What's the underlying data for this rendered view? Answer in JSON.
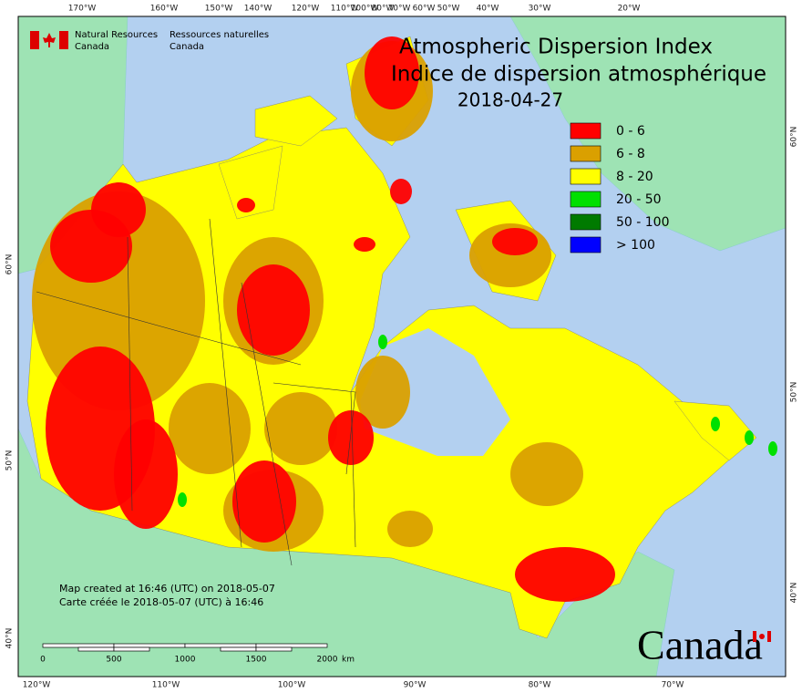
{
  "header": {
    "dept_en": "Natural Resources",
    "dept_en_2": "Canada",
    "dept_fr": "Ressources naturelles",
    "dept_fr_2": "Canada"
  },
  "title": {
    "line1": "Atmospheric Dispersion Index",
    "line2": "Indice de dispersion atmosphérique",
    "date": "2018-04-27"
  },
  "legend": [
    {
      "label": "0 - 6",
      "color": "#ff0000"
    },
    {
      "label": "6 - 8",
      "color": "#daa000"
    },
    {
      "label": "8 - 20",
      "color": "#ffff00"
    },
    {
      "label": "20 - 50",
      "color": "#00e000"
    },
    {
      "label": "50 - 100",
      "color": "#007a00"
    },
    {
      "label": "> 100",
      "color": "#0000ff"
    }
  ],
  "graticule": {
    "top": [
      "170°W",
      "160°W",
      "150°W",
      "140°W",
      "120°W",
      "110°W",
      "100°W",
      "80°W",
      "70°W",
      "60°W",
      "50°W",
      "40°W",
      "30°W",
      "20°W"
    ],
    "bottom": [
      "120°W",
      "110°W",
      "100°W",
      "90°W",
      "80°W",
      "70°W"
    ],
    "left": [
      "60°N",
      "50°N",
      "40°N"
    ],
    "right": [
      "60°N",
      "50°N",
      "40°N"
    ]
  },
  "scale_bar": {
    "labels": [
      "0",
      "500",
      "1000",
      "1500",
      "2000"
    ],
    "unit": "km"
  },
  "credits": [
    "Map created at 16:46 (UTC) on 2018-05-07",
    "Carte créée le 2018-05-07 (UTC) à 16:46"
  ],
  "wordmark": "Canada"
}
